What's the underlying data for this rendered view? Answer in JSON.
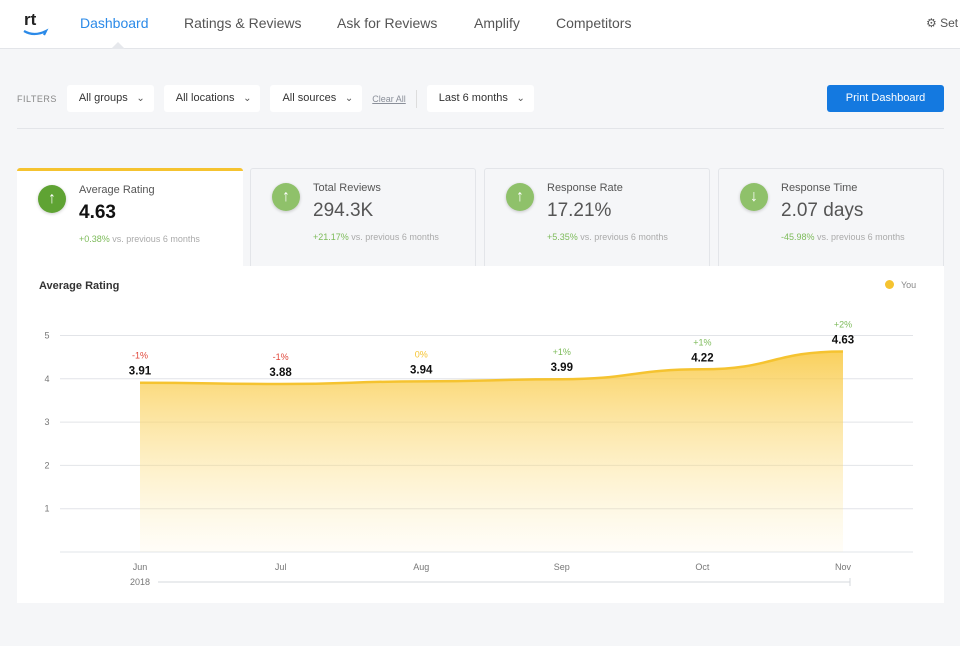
{
  "nav": {
    "logo": "rt",
    "items": [
      "Dashboard",
      "Ratings & Reviews",
      "Ask for Reviews",
      "Amplify",
      "Competitors"
    ],
    "active": "Dashboard",
    "settings": "Set"
  },
  "filters": {
    "label": "FILTERS",
    "groups": "All groups",
    "locations": "All locations",
    "sources": "All sources",
    "clear": "Clear All",
    "period": "Last 6 months",
    "print": "Print Dashboard"
  },
  "cards": [
    {
      "title": "Average Rating",
      "value": "4.63",
      "delta": "+0.38%",
      "suffix": "vs. previous 6 months",
      "icon": "arrow-up"
    },
    {
      "title": "Total Reviews",
      "value": "294.3K",
      "delta": "+21.17%",
      "suffix": "vs. previous 6 months",
      "icon": "arrow-up"
    },
    {
      "title": "Response Rate",
      "value": "17.21%",
      "delta": "+5.35%",
      "suffix": "vs. previous 6 months",
      "icon": "arrow-up"
    },
    {
      "title": "Response Time",
      "value": "2.07 days",
      "delta": "-45.98%",
      "suffix": "vs. previous 6 months",
      "icon": "arrow-down"
    }
  ],
  "colors": {
    "accent": "#1479e0",
    "series": "#f5c330",
    "positive": "#7dbb5a",
    "negative": "#e0473b",
    "neutral": "#f5c330"
  },
  "chart_data": {
    "type": "area",
    "title": "Average Rating",
    "legend": [
      "You"
    ],
    "legend_position": "top-right",
    "year": "2018",
    "categories": [
      "Jun",
      "Jul",
      "Aug",
      "Sep",
      "Oct",
      "Nov"
    ],
    "values": [
      3.91,
      3.88,
      3.94,
      3.99,
      4.22,
      4.63
    ],
    "changes": [
      "-1%",
      "-1%",
      "0%",
      "+1%",
      "+1%",
      "+2%"
    ],
    "yticks": [
      1,
      2,
      3,
      4,
      5
    ],
    "ylim": [
      0,
      5
    ],
    "grid": true
  }
}
